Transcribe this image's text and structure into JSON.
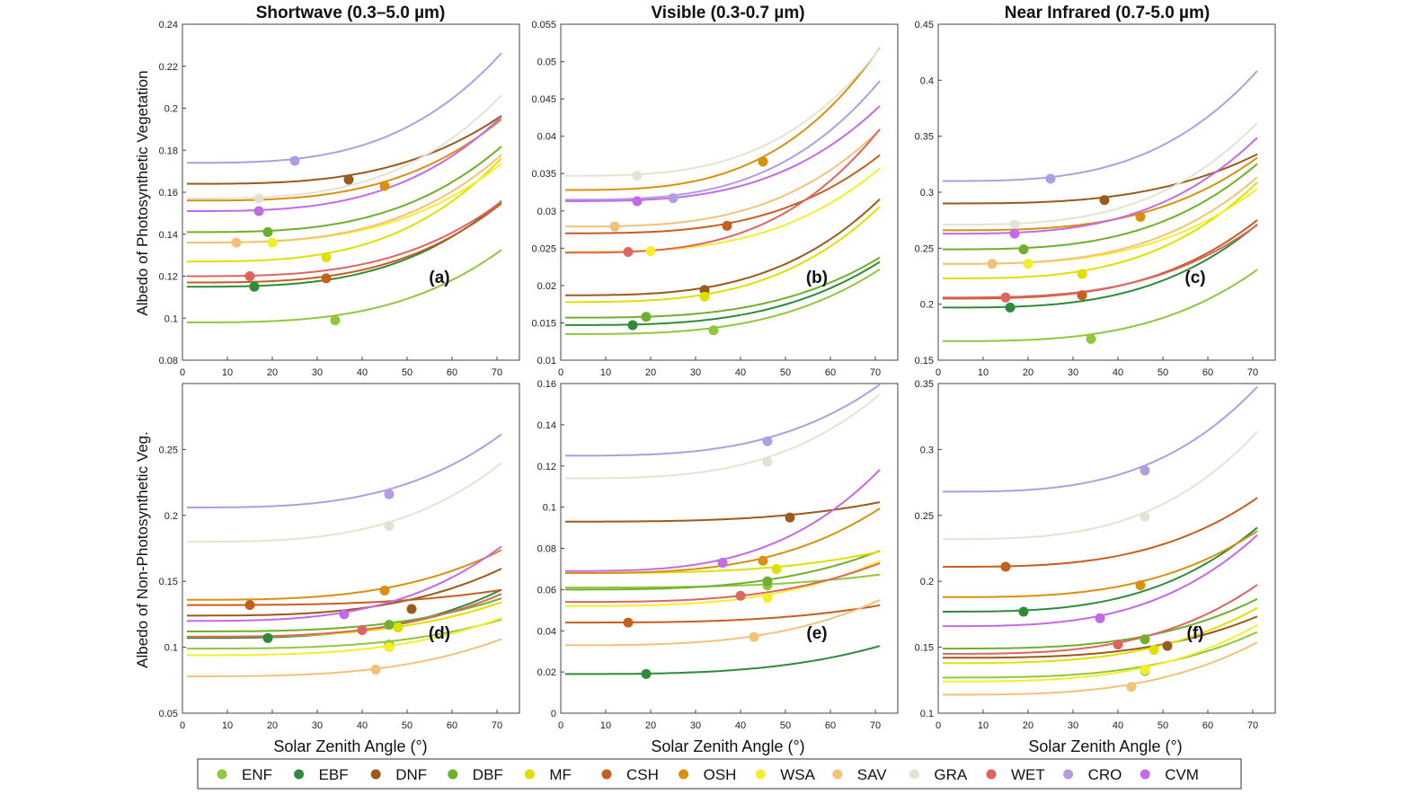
{
  "figure": {
    "column_titles": [
      "Shortwave (0.3–5.0 µm)",
      "Visible (0.3-0.7 µm)",
      "Near Infrared (0.7-5.0 µm)"
    ],
    "row_ylabels": [
      "Albedo of Photosynthetic Vegetation",
      "Albedo of Non-Photosynthetic Veg."
    ],
    "xlabel": "Solar Zenith Angle (°)"
  },
  "legend": {
    "entries": [
      {
        "label": "ENF",
        "color": "#92c63e"
      },
      {
        "label": "EBF",
        "color": "#2e8b3a"
      },
      {
        "label": "DNF",
        "color": "#9a5a1e"
      },
      {
        "label": "DBF",
        "color": "#6fb02a"
      },
      {
        "label": "MF",
        "color": "#e0e000"
      },
      {
        "label": "CSH",
        "color": "#c55f1f"
      },
      {
        "label": "OSH",
        "color": "#d9900f"
      },
      {
        "label": "WSA",
        "color": "#f5ee2a"
      },
      {
        "label": "SAV",
        "color": "#f2c27a"
      },
      {
        "label": "GRA",
        "color": "#e3e3d3"
      },
      {
        "label": "WET",
        "color": "#de6461"
      },
      {
        "label": "CRO",
        "color": "#b09ee0"
      },
      {
        "label": "CVM",
        "color": "#c36ae6"
      }
    ]
  },
  "chart_data": [
    {
      "type": "line",
      "panel": "(a)",
      "title": "Shortwave (0.3–5.0 µm)",
      "xlabel": "",
      "ylabel": "Albedo of Photosynthetic Vegetation",
      "xlim": [
        0,
        75
      ],
      "ylim": [
        0.08,
        0.24
      ],
      "xticks": [
        0,
        10,
        20,
        30,
        40,
        50,
        60,
        70
      ],
      "yticks": [
        0.08,
        0.1,
        0.12,
        0.14,
        0.16,
        0.18,
        0.2,
        0.22,
        0.24
      ],
      "yticklabels": [
        "0.08",
        "0.1",
        "0.12",
        "0.14",
        "0.16",
        "0.18",
        "0.2",
        "0.22",
        "0.24"
      ],
      "series": [
        {
          "name": "ENF",
          "y0": 0.098,
          "y70": 0.131,
          "marker": [
            34,
            0.099
          ]
        },
        {
          "name": "EBF",
          "y0": 0.115,
          "y70": 0.154,
          "marker": [
            16,
            0.115
          ]
        },
        {
          "name": "DNF",
          "y0": 0.164,
          "y70": 0.195,
          "marker": [
            37,
            0.166
          ]
        },
        {
          "name": "DBF",
          "y0": 0.141,
          "y70": 0.18,
          "marker": [
            19,
            0.141
          ]
        },
        {
          "name": "MF",
          "y0": 0.127,
          "y70": 0.174,
          "marker": [
            32,
            0.129
          ]
        },
        {
          "name": "CSH",
          "y0": 0.117,
          "y70": 0.153,
          "marker": [
            32,
            0.119
          ]
        },
        {
          "name": "OSH",
          "y0": 0.156,
          "y70": 0.193,
          "marker": [
            45,
            0.163
          ]
        },
        {
          "name": "WSA",
          "y0": 0.136,
          "y70": 0.172,
          "marker": [
            20,
            0.136
          ]
        },
        {
          "name": "SAV",
          "y0": 0.136,
          "y70": 0.176,
          "marker": [
            12,
            0.136
          ]
        },
        {
          "name": "GRA",
          "y0": 0.157,
          "y70": 0.204,
          "marker": [
            17,
            0.157
          ]
        },
        {
          "name": "WET",
          "y0": 0.12,
          "y70": 0.154,
          "marker": [
            15,
            0.12
          ]
        },
        {
          "name": "CRO",
          "y0": 0.174,
          "y70": 0.224,
          "marker": [
            25,
            0.175
          ]
        },
        {
          "name": "CVM",
          "y0": 0.151,
          "y70": 0.194,
          "marker": [
            17,
            0.151
          ]
        }
      ]
    },
    {
      "type": "line",
      "panel": "(b)",
      "title": "Visible (0.3-0.7 µm)",
      "xlabel": "",
      "ylabel": "",
      "xlim": [
        0,
        75
      ],
      "ylim": [
        0.01,
        0.055
      ],
      "xticks": [
        0,
        10,
        20,
        30,
        40,
        50,
        60,
        70
      ],
      "yticks": [
        0.01,
        0.015,
        0.02,
        0.025,
        0.03,
        0.035,
        0.04,
        0.045,
        0.05,
        0.055
      ],
      "yticklabels": [
        "0.01",
        "0.015",
        "0.02",
        "0.025",
        "0.03",
        "0.035",
        "0.04",
        "0.045",
        "0.05",
        "0.055"
      ],
      "series": [
        {
          "name": "ENF",
          "y0": 0.0135,
          "y70": 0.0218,
          "marker": [
            34,
            0.014
          ]
        },
        {
          "name": "EBF",
          "y0": 0.0147,
          "y70": 0.0228,
          "marker": [
            16,
            0.0147
          ]
        },
        {
          "name": "DNF",
          "y0": 0.0187,
          "y70": 0.031,
          "marker": [
            32,
            0.0194
          ]
        },
        {
          "name": "DBF",
          "y0": 0.0157,
          "y70": 0.0234,
          "marker": [
            19,
            0.0158
          ]
        },
        {
          "name": "MF",
          "y0": 0.0178,
          "y70": 0.03,
          "marker": [
            32,
            0.0185
          ]
        },
        {
          "name": "CSH",
          "y0": 0.027,
          "y70": 0.037,
          "marker": [
            37,
            0.028
          ]
        },
        {
          "name": "OSH",
          "y0": 0.0328,
          "y70": 0.051,
          "marker": [
            45,
            0.0366
          ]
        },
        {
          "name": "WSA",
          "y0": 0.0245,
          "y70": 0.0352,
          "marker": [
            20,
            0.0246
          ]
        },
        {
          "name": "SAV",
          "y0": 0.0279,
          "y70": 0.0403,
          "marker": [
            12,
            0.0279
          ]
        },
        {
          "name": "GRA",
          "y0": 0.0347,
          "y70": 0.051,
          "marker": [
            17,
            0.0347
          ]
        },
        {
          "name": "WET",
          "y0": 0.0244,
          "y70": 0.0402,
          "marker": [
            15,
            0.0245
          ]
        },
        {
          "name": "CRO",
          "y0": 0.0315,
          "y70": 0.0467,
          "marker": [
            25,
            0.0317
          ]
        },
        {
          "name": "CVM",
          "y0": 0.0313,
          "y70": 0.0435,
          "marker": [
            17,
            0.0313
          ]
        }
      ]
    },
    {
      "type": "line",
      "panel": "(c)",
      "title": "Near Infrared (0.7-5.0 µm)",
      "xlabel": "",
      "ylabel": "",
      "xlim": [
        0,
        75
      ],
      "ylim": [
        0.15,
        0.45
      ],
      "xticks": [
        0,
        10,
        20,
        30,
        40,
        50,
        60,
        70
      ],
      "yticks": [
        0.15,
        0.2,
        0.25,
        0.3,
        0.35,
        0.4,
        0.45
      ],
      "yticklabels": [
        "0.15",
        "0.2",
        "0.25",
        "0.3",
        "0.35",
        "0.4",
        "0.45"
      ],
      "series": [
        {
          "name": "ENF",
          "y0": 0.167,
          "y70": 0.228,
          "marker": [
            34,
            0.169
          ]
        },
        {
          "name": "EBF",
          "y0": 0.197,
          "y70": 0.268,
          "marker": [
            16,
            0.197
          ]
        },
        {
          "name": "DNF",
          "y0": 0.29,
          "y70": 0.332,
          "marker": [
            37,
            0.293
          ]
        },
        {
          "name": "DBF",
          "y0": 0.249,
          "y70": 0.322,
          "marker": [
            19,
            0.249
          ]
        },
        {
          "name": "MF",
          "y0": 0.223,
          "y70": 0.305,
          "marker": [
            32,
            0.227
          ]
        },
        {
          "name": "CSH",
          "y0": 0.205,
          "y70": 0.272,
          "marker": [
            32,
            0.208
          ]
        },
        {
          "name": "OSH",
          "y0": 0.266,
          "y70": 0.328,
          "marker": [
            45,
            0.278
          ]
        },
        {
          "name": "WSA",
          "y0": 0.236,
          "y70": 0.3,
          "marker": [
            20,
            0.236
          ]
        },
        {
          "name": "SAV",
          "y0": 0.236,
          "y70": 0.31,
          "marker": [
            12,
            0.236
          ]
        },
        {
          "name": "GRA",
          "y0": 0.271,
          "y70": 0.358,
          "marker": [
            17,
            0.271
          ]
        },
        {
          "name": "WET",
          "y0": 0.206,
          "y70": 0.268,
          "marker": [
            15,
            0.206
          ]
        },
        {
          "name": "CRO",
          "y0": 0.31,
          "y70": 0.404,
          "marker": [
            25,
            0.312
          ]
        },
        {
          "name": "CVM",
          "y0": 0.263,
          "y70": 0.345,
          "marker": [
            17,
            0.263
          ]
        }
      ]
    },
    {
      "type": "line",
      "panel": "(d)",
      "title": "",
      "xlabel": "Solar Zenith Angle (°)",
      "ylabel": "Albedo of Non-Photosynthetic Veg.",
      "xlim": [
        0,
        75
      ],
      "ylim": [
        0.05,
        0.3
      ],
      "xticks": [
        0,
        10,
        20,
        30,
        40,
        50,
        60,
        70
      ],
      "yticks": [
        0.05,
        0.1,
        0.15,
        0.2,
        0.25
      ],
      "yticklabels": [
        "0.05",
        "0.1",
        "0.15",
        "0.2",
        "0.25"
      ],
      "series": [
        {
          "name": "ENF",
          "y0": 0.099,
          "y70": 0.12,
          "marker": [
            46,
            0.102
          ]
        },
        {
          "name": "EBF",
          "y0": 0.107,
          "y70": 0.142,
          "marker": [
            19,
            0.107
          ]
        },
        {
          "name": "DNF",
          "y0": 0.124,
          "y70": 0.158,
          "marker": [
            51,
            0.129
          ]
        },
        {
          "name": "DBF",
          "y0": 0.112,
          "y70": 0.136,
          "marker": [
            46,
            0.117
          ]
        },
        {
          "name": "MF",
          "y0": 0.108,
          "y70": 0.133,
          "marker": [
            48,
            0.115
          ]
        },
        {
          "name": "CSH",
          "y0": 0.132,
          "y70": 0.143,
          "marker": [
            15,
            0.132
          ]
        },
        {
          "name": "OSH",
          "y0": 0.136,
          "y70": 0.172,
          "marker": [
            45,
            0.143
          ]
        },
        {
          "name": "WSA",
          "y0": 0.094,
          "y70": 0.121,
          "marker": [
            46,
            0.1
          ]
        },
        {
          "name": "SAV",
          "y0": 0.078,
          "y70": 0.105,
          "marker": [
            43,
            0.083
          ]
        },
        {
          "name": "GRA",
          "y0": 0.18,
          "y70": 0.237,
          "marker": [
            46,
            0.192
          ]
        },
        {
          "name": "WET",
          "y0": 0.108,
          "y70": 0.139,
          "marker": [
            40,
            0.113
          ]
        },
        {
          "name": "CRO",
          "y0": 0.206,
          "y70": 0.259,
          "marker": [
            46,
            0.216
          ]
        },
        {
          "name": "CVM",
          "y0": 0.12,
          "y70": 0.174,
          "marker": [
            36,
            0.125
          ]
        }
      ]
    },
    {
      "type": "line",
      "panel": "(e)",
      "title": "",
      "xlabel": "Solar Zenith Angle (°)",
      "ylabel": "",
      "xlim": [
        0,
        75
      ],
      "ylim": [
        0,
        0.16
      ],
      "xticks": [
        0,
        10,
        20,
        30,
        40,
        50,
        60,
        70
      ],
      "yticks": [
        0,
        0.02,
        0.04,
        0.06,
        0.08,
        0.1,
        0.12,
        0.14,
        0.16
      ],
      "yticklabels": [
        "0",
        "0.02",
        "0.04",
        "0.06",
        "0.08",
        "0.1",
        "0.12",
        "0.14",
        "0.16"
      ],
      "series": [
        {
          "name": "ENF",
          "y0": 0.061,
          "y70": 0.067,
          "marker": [
            46,
            0.062
          ]
        },
        {
          "name": "EBF",
          "y0": 0.019,
          "y70": 0.032,
          "marker": [
            19,
            0.019
          ]
        },
        {
          "name": "DNF",
          "y0": 0.093,
          "y70": 0.102,
          "marker": [
            51,
            0.095
          ]
        },
        {
          "name": "DBF",
          "y0": 0.06,
          "y70": 0.078,
          "marker": [
            46,
            0.064
          ]
        },
        {
          "name": "MF",
          "y0": 0.068,
          "y70": 0.078,
          "marker": [
            48,
            0.07
          ]
        },
        {
          "name": "CSH",
          "y0": 0.044,
          "y70": 0.052,
          "marker": [
            15,
            0.044
          ]
        },
        {
          "name": "OSH",
          "y0": 0.068,
          "y70": 0.098,
          "marker": [
            45,
            0.074
          ]
        },
        {
          "name": "WSA",
          "y0": 0.052,
          "y70": 0.073,
          "marker": [
            46,
            0.056
          ]
        },
        {
          "name": "SAV",
          "y0": 0.033,
          "y70": 0.054,
          "marker": [
            43,
            0.037
          ]
        },
        {
          "name": "GRA",
          "y0": 0.114,
          "y70": 0.153,
          "marker": [
            46,
            0.122
          ]
        },
        {
          "name": "WET",
          "y0": 0.054,
          "y70": 0.072,
          "marker": [
            40,
            0.057
          ]
        },
        {
          "name": "CRO",
          "y0": 0.125,
          "y70": 0.158,
          "marker": [
            46,
            0.132
          ]
        },
        {
          "name": "CVM",
          "y0": 0.069,
          "y70": 0.116,
          "marker": [
            36,
            0.073
          ]
        }
      ]
    },
    {
      "type": "line",
      "panel": "(f)",
      "title": "",
      "xlabel": "Solar Zenith Angle (°)",
      "ylabel": "",
      "xlim": [
        0,
        75
      ],
      "ylim": [
        0.1,
        0.35
      ],
      "xticks": [
        0,
        10,
        20,
        30,
        40,
        50,
        60,
        70
      ],
      "yticks": [
        0.1,
        0.15,
        0.2,
        0.25,
        0.3,
        0.35
      ],
      "yticklabels": [
        "0.1",
        "0.15",
        "0.2",
        "0.25",
        "0.3",
        "0.35"
      ],
      "series": [
        {
          "name": "ENF",
          "y0": 0.127,
          "y70": 0.16,
          "marker": [
            46,
            0.132
          ]
        },
        {
          "name": "EBF",
          "y0": 0.177,
          "y70": 0.238,
          "marker": [
            19,
            0.177
          ]
        },
        {
          "name": "DNF",
          "y0": 0.142,
          "y70": 0.172,
          "marker": [
            51,
            0.151
          ]
        },
        {
          "name": "DBF",
          "y0": 0.149,
          "y70": 0.185,
          "marker": [
            46,
            0.156
          ]
        },
        {
          "name": "MF",
          "y0": 0.138,
          "y70": 0.178,
          "marker": [
            48,
            0.148
          ]
        },
        {
          "name": "CSH",
          "y0": 0.211,
          "y70": 0.261,
          "marker": [
            15,
            0.211
          ]
        },
        {
          "name": "OSH",
          "y0": 0.188,
          "y70": 0.236,
          "marker": [
            45,
            0.197
          ]
        },
        {
          "name": "WSA",
          "y0": 0.124,
          "y70": 0.165,
          "marker": [
            46,
            0.133
          ]
        },
        {
          "name": "SAV",
          "y0": 0.114,
          "y70": 0.152,
          "marker": [
            43,
            0.12
          ]
        },
        {
          "name": "GRA",
          "y0": 0.232,
          "y70": 0.31,
          "marker": [
            46,
            0.249
          ]
        },
        {
          "name": "WET",
          "y0": 0.145,
          "y70": 0.195,
          "marker": [
            40,
            0.152
          ]
        },
        {
          "name": "CRO",
          "y0": 0.268,
          "y70": 0.344,
          "marker": [
            46,
            0.284
          ]
        },
        {
          "name": "CVM",
          "y0": 0.166,
          "y70": 0.232,
          "marker": [
            36,
            0.172
          ]
        }
      ]
    }
  ]
}
